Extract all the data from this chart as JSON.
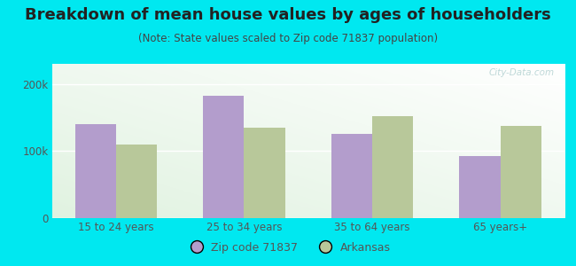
{
  "title": "Breakdown of mean house values by ages of householders",
  "subtitle": "(Note: State values scaled to Zip code 71837 population)",
  "categories": [
    "15 to 24 years",
    "25 to 34 years",
    "35 to 64 years",
    "65 years+"
  ],
  "zip_values": [
    140000,
    182000,
    125000,
    92000
  ],
  "state_values": [
    110000,
    135000,
    152000,
    138000
  ],
  "zip_color": "#b39dcc",
  "state_color": "#b8c89a",
  "background_outer": "#00e8f0",
  "ylim": [
    0,
    230000
  ],
  "ytick_labels": [
    "0",
    "100k",
    "200k"
  ],
  "ytick_values": [
    0,
    100000,
    200000
  ],
  "bar_width": 0.32,
  "zip_label": "Zip code 71837",
  "state_label": "Arkansas",
  "title_fontsize": 13,
  "subtitle_fontsize": 8.5,
  "tick_fontsize": 8.5,
  "legend_fontsize": 9,
  "title_color": "#222222",
  "subtitle_color": "#444444",
  "tick_color": "#555555",
  "watermark": "City-Data.com"
}
